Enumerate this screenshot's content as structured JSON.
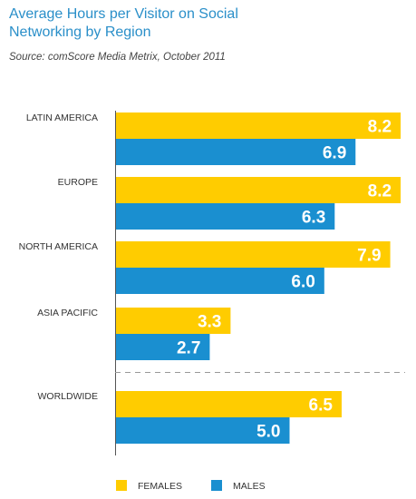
{
  "chart_data": {
    "type": "bar",
    "orientation": "horizontal",
    "title_line1": "Average Hours per Visitor on Social",
    "title_line2": "Networking by Region",
    "subtitle": "Source: comScore Media Metrix, October 2011",
    "categories": [
      "LATIN AMERICA",
      "EUROPE",
      "NORTH AMERICA",
      "ASIA PACIFIC",
      "WORLDWIDE"
    ],
    "series": [
      {
        "name": "FEMALES",
        "color": "#ffcc00",
        "values": [
          8.2,
          8.2,
          7.9,
          3.3,
          6.5
        ]
      },
      {
        "name": "MALES",
        "color": "#1a8fd0",
        "values": [
          6.9,
          6.3,
          6.0,
          2.7,
          5.0
        ]
      }
    ],
    "value_labels": [
      [
        "8.2",
        "8.2",
        "7.9",
        "3.3",
        "6.5"
      ],
      [
        "6.9",
        "6.3",
        "6.0",
        "2.7",
        "5.0"
      ]
    ],
    "xlim": [
      0,
      8.5
    ],
    "grid": false,
    "legend": "bottom-left",
    "separator_before": "WORLDWIDE"
  }
}
